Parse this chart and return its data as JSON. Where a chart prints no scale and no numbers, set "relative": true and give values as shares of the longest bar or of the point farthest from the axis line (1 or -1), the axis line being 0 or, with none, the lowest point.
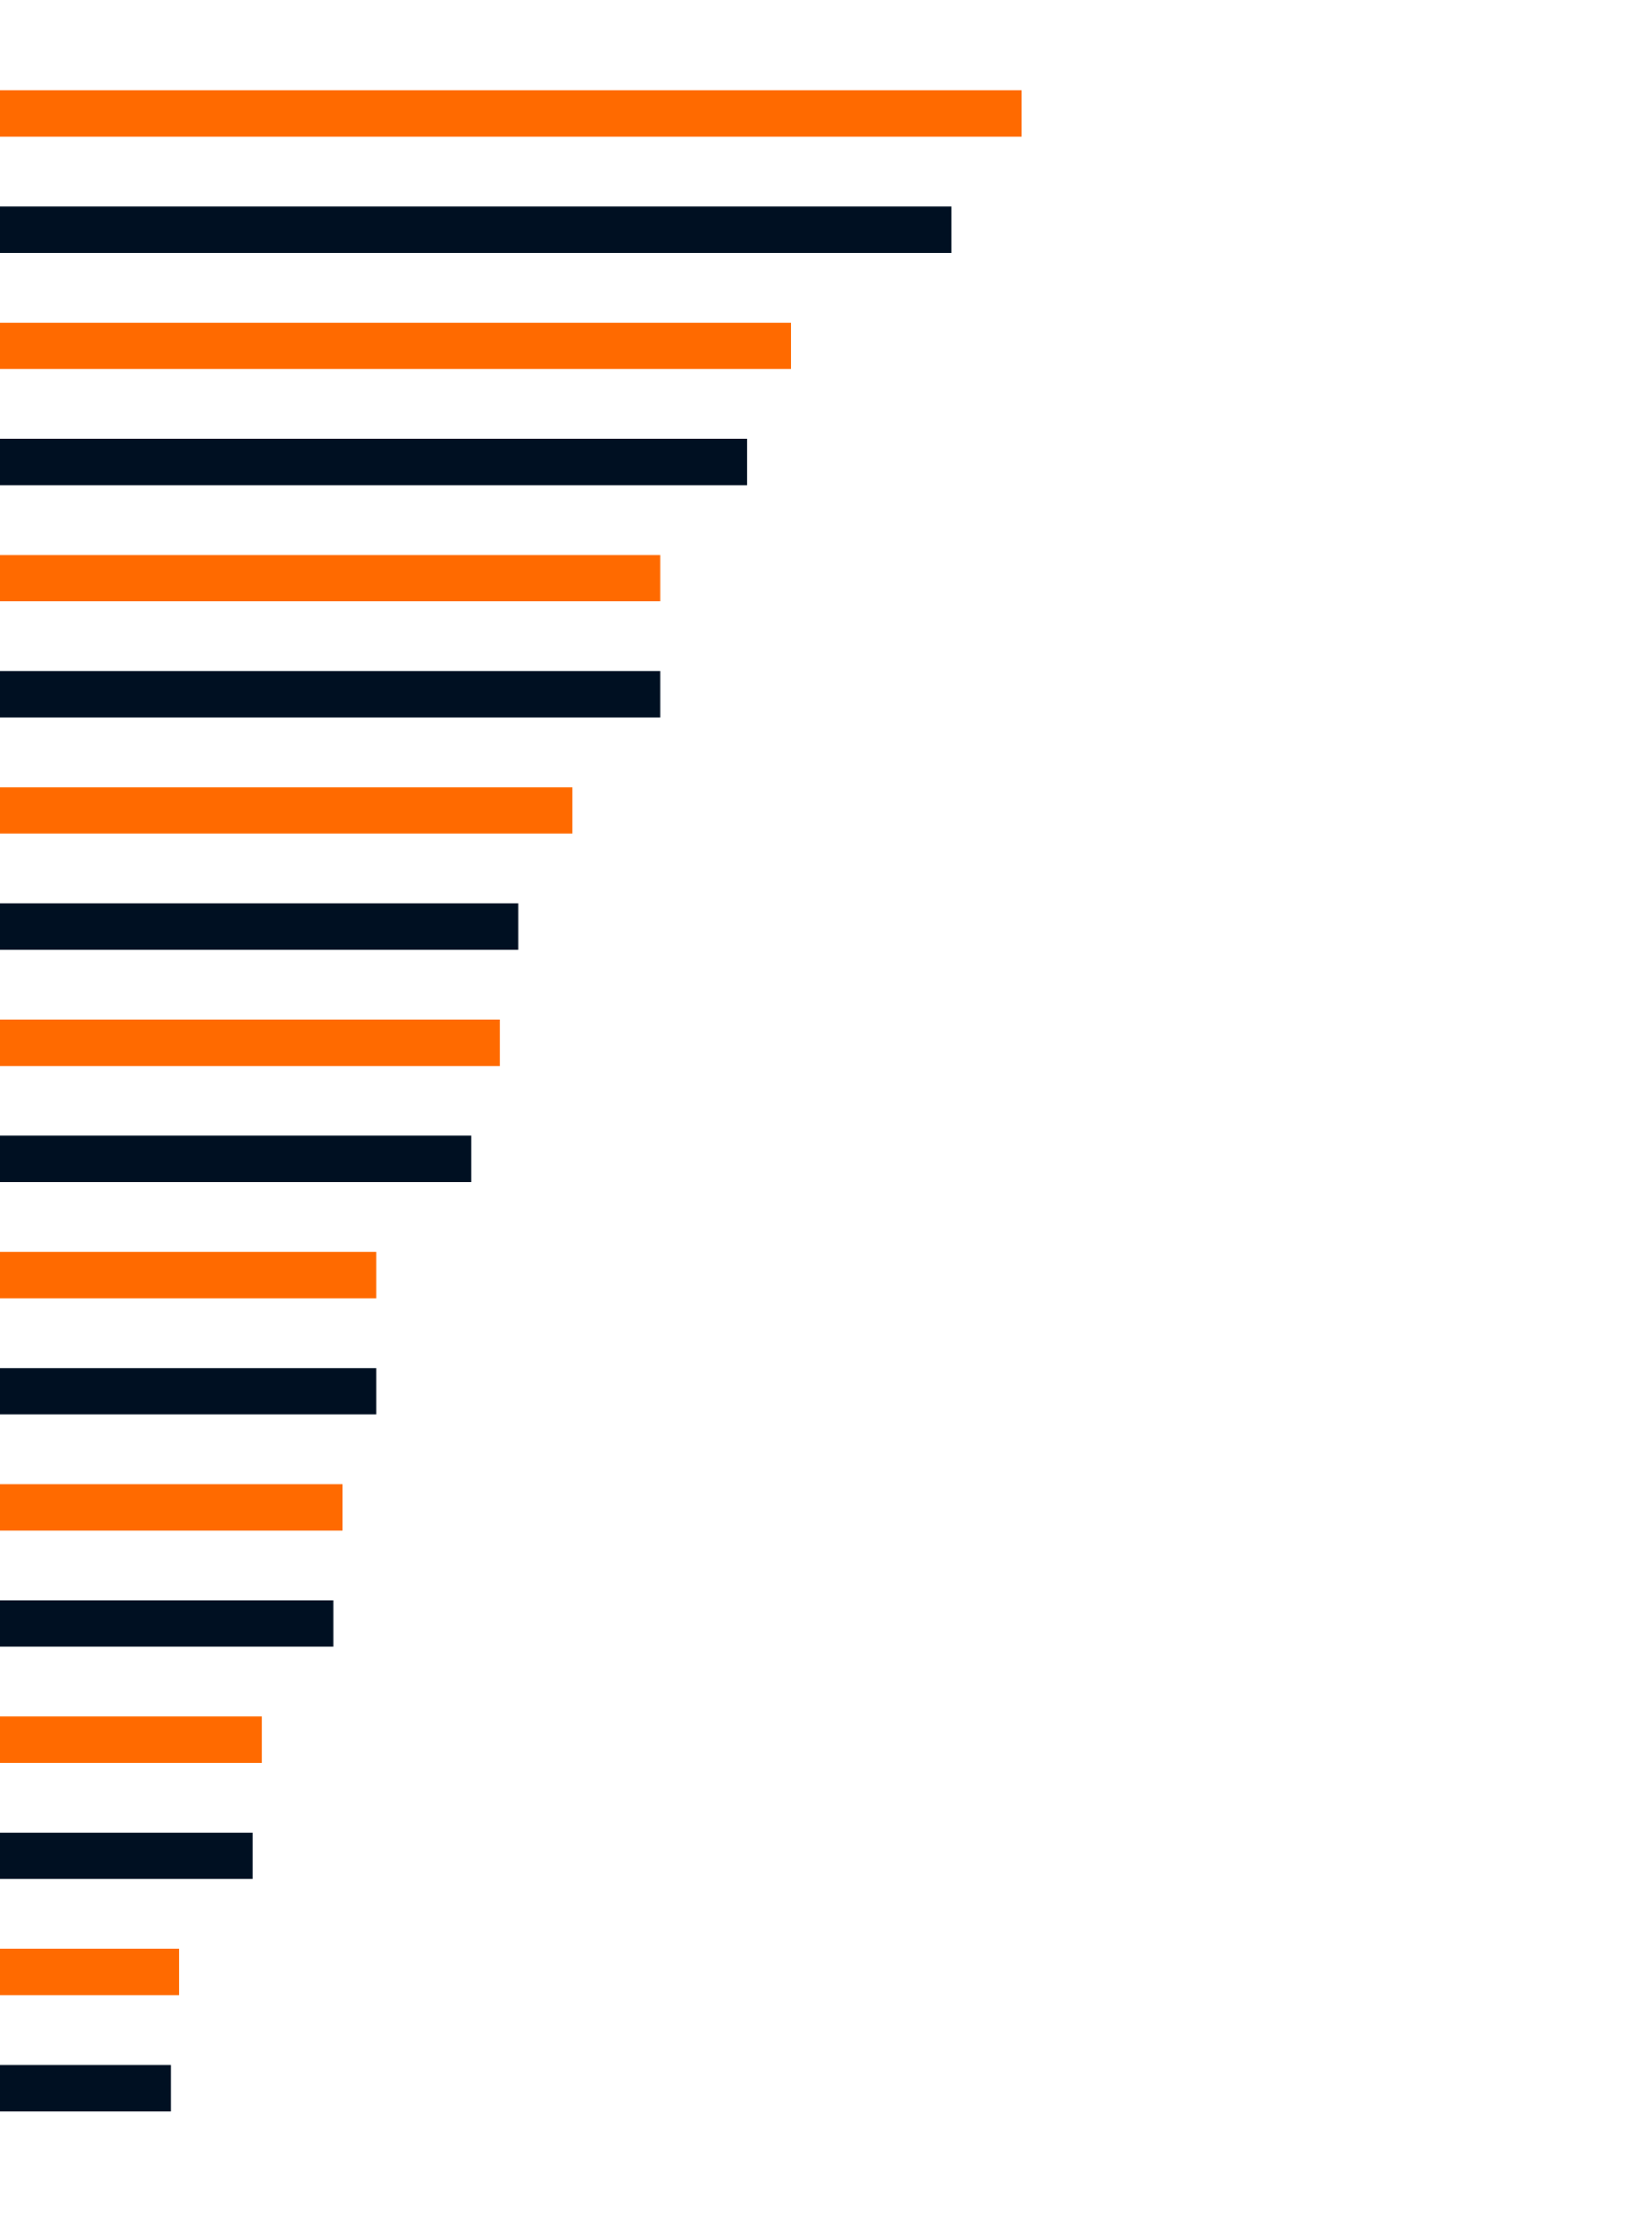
{
  "chart_data": {
    "type": "bar",
    "orientation": "horizontal",
    "relative": true,
    "categories": [
      null,
      null,
      null,
      null,
      null,
      null,
      null,
      null,
      null,
      null,
      null,
      null,
      null,
      null,
      null,
      null,
      null,
      null
    ],
    "values": [
      1,
      0.931,
      0.774,
      0.731,
      0.646,
      0.646,
      0.56,
      0.507,
      0.489,
      0.461,
      0.368,
      0.368,
      0.335,
      0.326,
      0.256,
      0.247,
      0.175,
      0.167
    ],
    "colors": [
      "#ff6a00",
      "#001022",
      "#ff6a00",
      "#001022",
      "#ff6a00",
      "#001022",
      "#ff6a00",
      "#001022",
      "#ff6a00",
      "#001022",
      "#ff6a00",
      "#001022",
      "#ff6a00",
      "#001022",
      "#ff6a00",
      "#001022",
      "#ff6a00",
      "#001022"
    ],
    "legend": false,
    "tick_labels": false
  }
}
